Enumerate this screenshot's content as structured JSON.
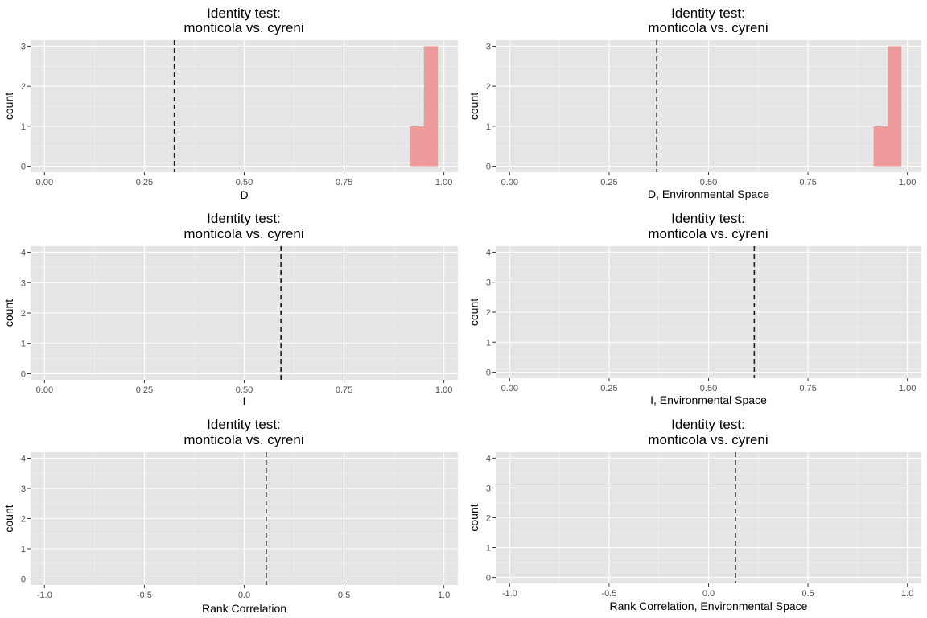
{
  "colors": {
    "panel_bg": "#e5e5e5",
    "grid_major": "#ffffff",
    "grid_minor": "#f2f2f2",
    "bar_fill": "#f08080",
    "observed_line": "#1a1a1a",
    "tick_text": "#4d4d4d"
  },
  "chart_data": [
    {
      "type": "bar",
      "title_lines": [
        "Identity test:",
        "monticola vs. cyreni"
      ],
      "xlabel": "D",
      "ylabel": "count",
      "xlim": [
        -0.035,
        1.035
      ],
      "ylim": [
        -0.15,
        3.15
      ],
      "xticks": [
        0,
        0.25,
        0.5,
        0.75,
        1
      ],
      "xtick_labels": [
        "0.00",
        "0.25",
        "0.50",
        "0.75",
        "1.00"
      ],
      "yticks": [
        0,
        1,
        2,
        3
      ],
      "ytick_labels": [
        "0",
        "1",
        "2",
        "3"
      ],
      "bins": [
        {
          "x0": 0.915,
          "x1": 0.95,
          "count": 1
        },
        {
          "x0": 0.95,
          "x1": 0.985,
          "count": 3
        }
      ],
      "observed_value": 0.325
    },
    {
      "type": "bar",
      "title_lines": [
        "Identity test:",
        "monticola vs. cyreni"
      ],
      "xlabel": "D, Environmental Space",
      "ylabel": "count",
      "xlim": [
        -0.035,
        1.035
      ],
      "ylim": [
        -0.15,
        3.15
      ],
      "xticks": [
        0,
        0.25,
        0.5,
        0.75,
        1
      ],
      "xtick_labels": [
        "0.00",
        "0.25",
        "0.50",
        "0.75",
        "1.00"
      ],
      "yticks": [
        0,
        1,
        2,
        3
      ],
      "ytick_labels": [
        "0",
        "1",
        "2",
        "3"
      ],
      "bins": [
        {
          "x0": 0.915,
          "x1": 0.95,
          "count": 1
        },
        {
          "x0": 0.95,
          "x1": 0.985,
          "count": 3
        }
      ],
      "observed_value": 0.37
    },
    {
      "type": "bar",
      "title_lines": [
        "Identity test:",
        "monticola vs. cyreni"
      ],
      "xlabel": "I",
      "ylabel": "count",
      "xlim": [
        -0.035,
        1.035
      ],
      "ylim": [
        -0.2,
        4.2
      ],
      "xticks": [
        0,
        0.25,
        0.5,
        0.75,
        1
      ],
      "xtick_labels": [
        "0.00",
        "0.25",
        "0.50",
        "0.75",
        "1.00"
      ],
      "yticks": [
        0,
        1,
        2,
        3,
        4
      ],
      "ytick_labels": [
        "0",
        "1",
        "2",
        "3",
        "4"
      ],
      "bins": [],
      "observed_value": 0.592
    },
    {
      "type": "bar",
      "title_lines": [
        "Identity test:",
        "monticola vs. cyreni"
      ],
      "xlabel": "I, Environmental Space",
      "ylabel": "count",
      "xlim": [
        -0.035,
        1.035
      ],
      "ylim": [
        -0.2,
        4.2
      ],
      "xticks": [
        0,
        0.25,
        0.5,
        0.75,
        1
      ],
      "xtick_labels": [
        "0.00",
        "0.25",
        "0.50",
        "0.75",
        "1.00"
      ],
      "yticks": [
        0,
        1,
        2,
        3,
        4
      ],
      "ytick_labels": [
        "0",
        "1",
        "2",
        "3",
        "4"
      ],
      "bins": [],
      "observed_value": 0.615
    },
    {
      "type": "bar",
      "title_lines": [
        "Identity test:",
        "monticola vs. cyreni"
      ],
      "xlabel": "Rank Correlation",
      "ylabel": "count",
      "xlim": [
        -1.07,
        1.07
      ],
      "ylim": [
        -0.2,
        4.2
      ],
      "xticks": [
        -1,
        -0.5,
        0,
        0.5,
        1
      ],
      "xtick_labels": [
        "-1.0",
        "-0.5",
        "0.0",
        "0.5",
        "1.0"
      ],
      "yticks": [
        0,
        1,
        2,
        3,
        4
      ],
      "ytick_labels": [
        "0",
        "1",
        "2",
        "3",
        "4"
      ],
      "bins": [],
      "observed_value": 0.11
    },
    {
      "type": "bar",
      "title_lines": [
        "Identity test:",
        "monticola vs. cyreni"
      ],
      "xlabel": "Rank Correlation, Environmental Space",
      "ylabel": "count",
      "xlim": [
        -1.07,
        1.07
      ],
      "ylim": [
        -0.2,
        4.2
      ],
      "xticks": [
        -1,
        -0.5,
        0,
        0.5,
        1
      ],
      "xtick_labels": [
        "-1.0",
        "-0.5",
        "0.0",
        "0.5",
        "1.0"
      ],
      "yticks": [
        0,
        1,
        2,
        3,
        4
      ],
      "ytick_labels": [
        "0",
        "1",
        "2",
        "3",
        "4"
      ],
      "bins": [],
      "observed_value": 0.135
    }
  ]
}
